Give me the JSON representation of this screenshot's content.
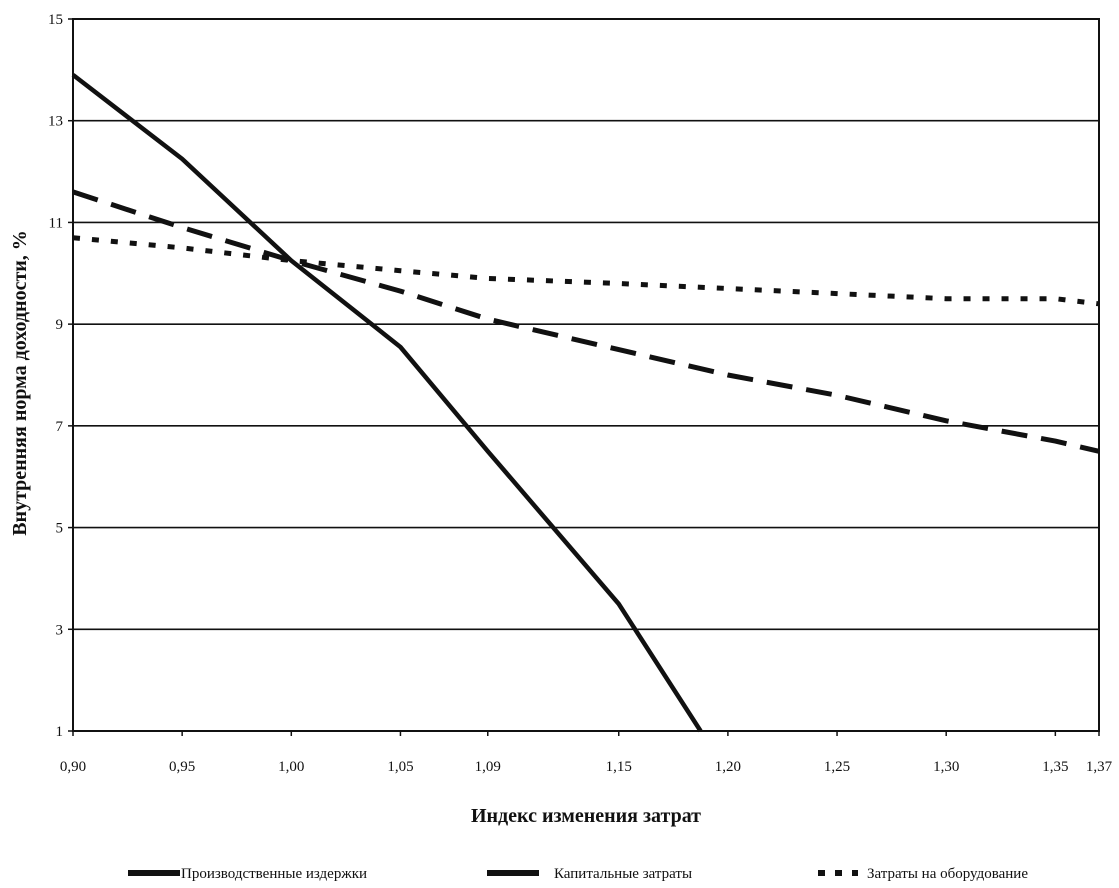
{
  "chart_data": {
    "type": "line",
    "xlabel": "Индекс изменения затрат",
    "ylabel": "Внутренняя норма доходности, %",
    "x": [
      0.9,
      0.95,
      1.0,
      1.05,
      1.09,
      1.15,
      1.2,
      1.25,
      1.3,
      1.35,
      1.37
    ],
    "x_tick_labels": [
      "0,90",
      "0,95",
      "1,00",
      "1,05",
      "1,09",
      "1,15",
      "1,20",
      "1,25",
      "1,30",
      "1,35",
      "1,37"
    ],
    "y_ticks": [
      1,
      3,
      5,
      7,
      9,
      11,
      13,
      15
    ],
    "y_tick_labels": [
      "1",
      "3",
      "5",
      "7",
      "9",
      "11",
      "13",
      "15"
    ],
    "ylim": [
      1,
      15
    ],
    "grid": "horizontal",
    "legend_position": "bottom",
    "series": [
      {
        "name": "Производственные издержки",
        "style": "solid",
        "color": "#111111",
        "points": [
          [
            0.9,
            13.9
          ],
          [
            0.95,
            12.25
          ],
          [
            1.0,
            10.25
          ],
          [
            1.05,
            8.55
          ],
          [
            1.09,
            6.5
          ],
          [
            1.15,
            3.5
          ],
          [
            1.1875,
            1.0
          ]
        ]
      },
      {
        "name": "Капитальные затраты",
        "style": "dashed",
        "color": "#111111",
        "points": [
          [
            0.9,
            11.6
          ],
          [
            0.95,
            10.9
          ],
          [
            1.0,
            10.25
          ],
          [
            1.05,
            9.65
          ],
          [
            1.09,
            9.1
          ],
          [
            1.15,
            8.5
          ],
          [
            1.2,
            8.0
          ],
          [
            1.25,
            7.6
          ],
          [
            1.3,
            7.1
          ],
          [
            1.35,
            6.7
          ],
          [
            1.37,
            6.5
          ]
        ]
      },
      {
        "name": "Затраты на оборудование",
        "style": "dotted",
        "color": "#111111",
        "points": [
          [
            0.9,
            10.7
          ],
          [
            0.95,
            10.5
          ],
          [
            1.0,
            10.25
          ],
          [
            1.05,
            10.05
          ],
          [
            1.09,
            9.9
          ],
          [
            1.15,
            9.8
          ],
          [
            1.2,
            9.7
          ],
          [
            1.25,
            9.6
          ],
          [
            1.3,
            9.5
          ],
          [
            1.35,
            9.5
          ],
          [
            1.37,
            9.4
          ]
        ]
      }
    ]
  }
}
